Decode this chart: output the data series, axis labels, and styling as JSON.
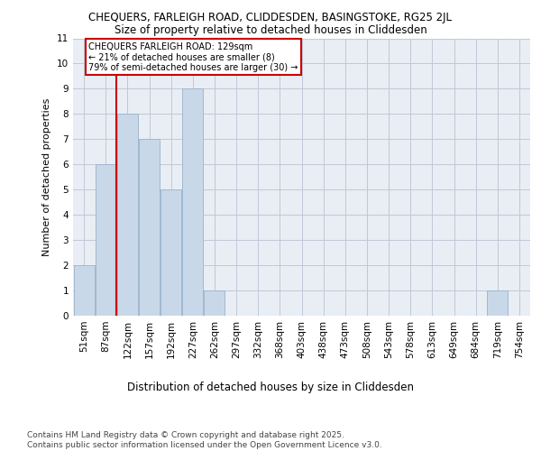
{
  "title1": "CHEQUERS, FARLEIGH ROAD, CLIDDESDEN, BASINGSTOKE, RG25 2JL",
  "title2": "Size of property relative to detached houses in Cliddesden",
  "xlabel": "Distribution of detached houses by size in Cliddesden",
  "ylabel": "Number of detached properties",
  "categories": [
    "51sqm",
    "87sqm",
    "122sqm",
    "157sqm",
    "192sqm",
    "227sqm",
    "262sqm",
    "297sqm",
    "332sqm",
    "368sqm",
    "403sqm",
    "438sqm",
    "473sqm",
    "508sqm",
    "543sqm",
    "578sqm",
    "613sqm",
    "649sqm",
    "684sqm",
    "719sqm",
    "754sqm"
  ],
  "values": [
    2,
    6,
    8,
    7,
    5,
    9,
    1,
    0,
    0,
    0,
    0,
    0,
    0,
    0,
    0,
    0,
    0,
    0,
    0,
    1,
    0
  ],
  "bar_color": "#c8d8e8",
  "bar_edge_color": "#a0b8d0",
  "grid_color": "#c0c8d8",
  "marker_line_color": "#cc0000",
  "annotation_text": "CHEQUERS FARLEIGH ROAD: 129sqm\n← 21% of detached houses are smaller (8)\n79% of semi-detached houses are larger (30) →",
  "annotation_box_color": "#ffffff",
  "annotation_box_edge": "#cc0000",
  "ylim": [
    0,
    11
  ],
  "yticks": [
    0,
    1,
    2,
    3,
    4,
    5,
    6,
    7,
    8,
    9,
    10,
    11
  ],
  "footnote": "Contains HM Land Registry data © Crown copyright and database right 2025.\nContains public sector information licensed under the Open Government Licence v3.0.",
  "bg_color": "#e8eef4",
  "title1_fontsize": 8.5,
  "title2_fontsize": 8.5,
  "ylabel_fontsize": 8,
  "xlabel_fontsize": 8.5,
  "tick_fontsize": 7.5,
  "footnote_fontsize": 6.5
}
